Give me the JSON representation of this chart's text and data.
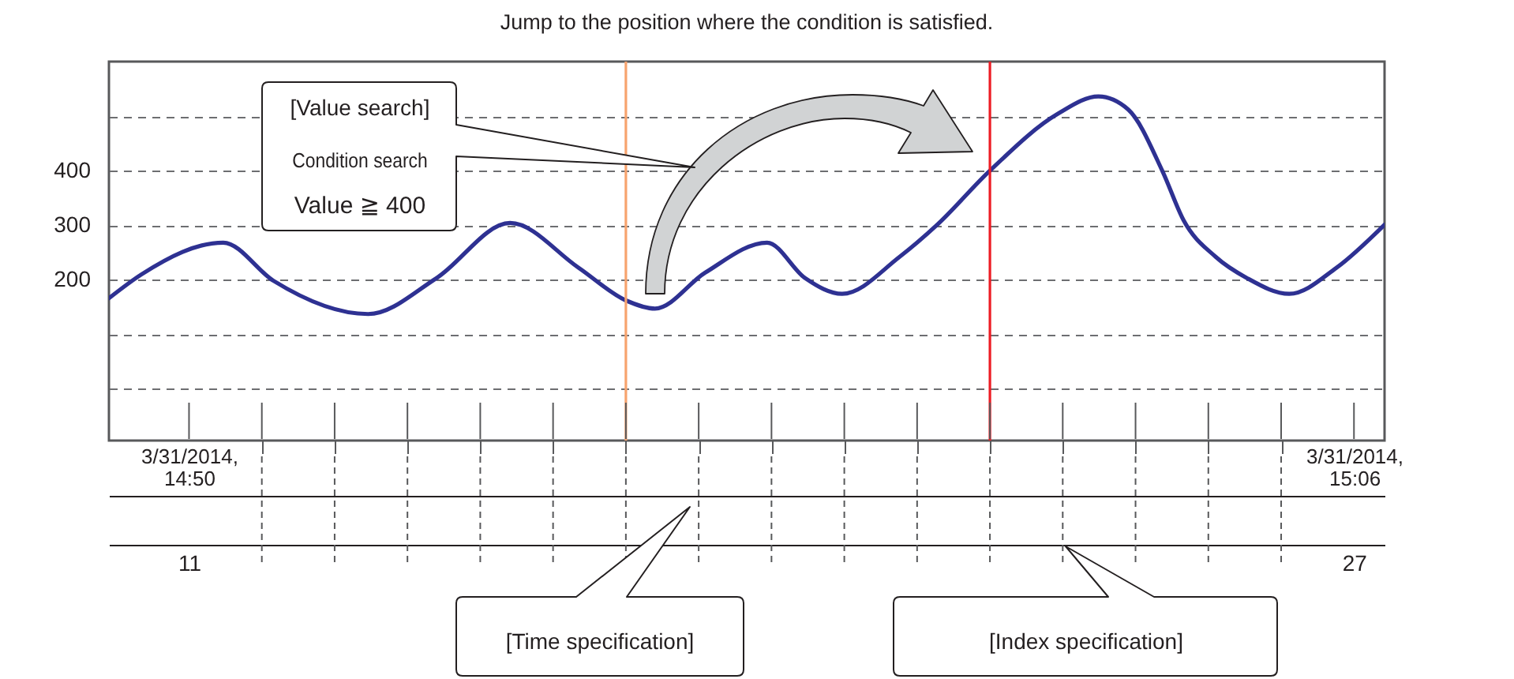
{
  "chart_data": {
    "type": "line",
    "title": "Jump to the position where the condition is satisfied.",
    "x": [
      9.9,
      10.35,
      11.47,
      12.16,
      13.46,
      14.4,
      15.41,
      16.35,
      17.0,
      17.4,
      18.09,
      18.94,
      19.46,
      19.97,
      20.76,
      21.27,
      22.0,
      22.93,
      23.49,
      23.9,
      24.37,
      24.66,
      25.1,
      25.53,
      26.11,
      26.76,
      27.42
    ],
    "series": [
      {
        "color": "#2e3192",
        "values": [
          166,
          210,
          268,
          198,
          137,
          203,
          304,
          222,
          162,
          147,
          213,
          268,
          203,
          174,
          242,
          300,
          400,
          504,
          536,
          512,
          399,
          309,
          242,
          203,
          174,
          222,
          301
        ]
      }
    ],
    "xlim": [
      9.9,
      27.42
    ],
    "xticks": [
      11,
      {
        "value": 12,
        "label": null
      },
      {
        "value": 13,
        "label": null
      },
      {
        "value": 14,
        "label": null
      },
      {
        "value": 15,
        "label": null
      },
      {
        "value": 16,
        "label": null
      },
      {
        "value": 17,
        "label": null
      },
      {
        "value": 18,
        "label": null
      },
      {
        "value": 19,
        "label": null
      },
      {
        "value": 20,
        "label": null
      },
      {
        "value": 21,
        "label": null
      },
      {
        "value": 22,
        "label": null
      },
      {
        "value": 23,
        "label": null
      },
      {
        "value": 24,
        "label": null
      },
      {
        "value": 25,
        "label": null
      },
      {
        "value": 26,
        "label": null
      },
      27
    ],
    "x2lim": [
      "2014-03-31T14:48:54",
      "2014-03-31T15:06:25"
    ],
    "x2ticks": [
      {
        "value": "2014-03-31T14:50",
        "label": "3/31/2014,\n14:50"
      },
      {
        "value": "2014-03-31T15:06",
        "label": "3/31/2014,\n15:06"
      }
    ],
    "ylim": [
      -95,
      600
    ],
    "yticks": [
      {
        "value": 0,
        "label": null
      },
      {
        "value": 100,
        "label": null
      },
      200,
      300,
      400,
      {
        "value": 500,
        "label": null
      }
    ],
    "grid": "y",
    "ref_lines": [
      {
        "axis": "x",
        "value": 17,
        "color": "#f7a36e"
      },
      {
        "axis": "x",
        "value": 22,
        "color": "#ed1c24"
      }
    ],
    "annotations": [
      "[Value search]\nCondition search\nValue ≧ 400",
      "[Time specification]",
      "[Index specification]"
    ]
  }
}
